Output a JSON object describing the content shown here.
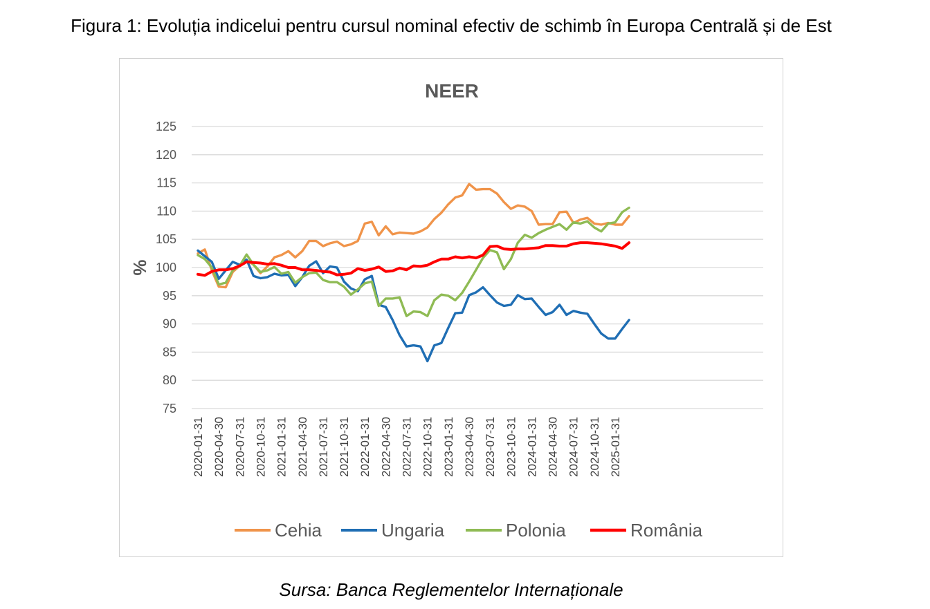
{
  "figure": {
    "title": "Figura 1: Evoluția indicelui pentru cursul nominal efectiv de schimb în Europa Centrală și de Est",
    "source": "Sursa: Banca Reglementelor Internaționale"
  },
  "chart_data": {
    "type": "line",
    "title": "NEER",
    "xlabel": "",
    "ylabel": "%",
    "ylim": [
      75,
      125
    ],
    "yticks": [
      75,
      80,
      85,
      90,
      95,
      100,
      105,
      110,
      115,
      120,
      125
    ],
    "grid": "horizontal",
    "legend_position": "bottom",
    "x_tick_labels": [
      "2020-01-31",
      "2020-04-30",
      "2020-07-31",
      "2020-10-31",
      "2021-01-31",
      "2021-04-30",
      "2021-07-31",
      "2021-10-31",
      "2022-01-31",
      "2022-04-30",
      "2022-07-31",
      "2022-10-31",
      "2023-01-31",
      "2023-04-30",
      "2023-07-31",
      "2023-10-31",
      "2024-01-31",
      "2024-04-30",
      "2024-07-31",
      "2024-10-31",
      "2025-01-31"
    ],
    "x_first": "2020-01-31",
    "x_last": "2025-05-31",
    "series": [
      {
        "name": "Cehia",
        "color": "#F0944A",
        "values": [
          102.5,
          103.2,
          99.5,
          96.6,
          96.5,
          99.2,
          100.3,
          101.3,
          100.5,
          99.0,
          100.2,
          101.8,
          102.2,
          102.9,
          101.8,
          102.9,
          104.7,
          104.7,
          103.8,
          104.3,
          104.6,
          103.8,
          104.1,
          104.7,
          107.8,
          108.1,
          105.7,
          107.3,
          105.9,
          106.2,
          106.1,
          106.0,
          106.4,
          107.1,
          108.6,
          109.7,
          111.2,
          112.4,
          112.8,
          114.8,
          113.8,
          113.9,
          113.9,
          113.1,
          111.6,
          110.4,
          111.0,
          110.8,
          110.0,
          107.6,
          107.7,
          107.7,
          109.8,
          109.9,
          107.9,
          108.5,
          108.8,
          107.8,
          107.6,
          107.9,
          107.6,
          107.6,
          109.1
        ]
      },
      {
        "name": "Ungaria",
        "color": "#1F6EB4",
        "values": [
          103.0,
          102.0,
          101.0,
          98.0,
          99.5,
          101.0,
          100.5,
          101.4,
          98.5,
          98.1,
          98.3,
          98.9,
          98.6,
          98.7,
          96.7,
          98.3,
          100.3,
          101.1,
          99.0,
          100.2,
          100.0,
          97.5,
          96.3,
          95.8,
          97.9,
          98.5,
          93.4,
          93.0,
          90.7,
          88.0,
          86.0,
          86.2,
          86.0,
          83.4,
          86.2,
          86.6,
          89.3,
          91.9,
          92.0,
          95.1,
          95.6,
          96.5,
          95.1,
          93.8,
          93.2,
          93.4,
          95.1,
          94.4,
          94.5,
          93.0,
          91.6,
          92.1,
          93.4,
          91.6,
          92.3,
          92.0,
          91.8,
          90.0,
          88.3,
          87.4,
          87.4,
          89.1,
          90.7
        ]
      },
      {
        "name": "Polonia",
        "color": "#8FBB54",
        "values": [
          102.2,
          101.5,
          100.0,
          97.0,
          97.3,
          99.5,
          100.3,
          102.3,
          100.5,
          99.2,
          99.5,
          100.1,
          98.9,
          99.2,
          97.3,
          98.3,
          99.0,
          99.1,
          97.8,
          97.4,
          97.4,
          96.6,
          95.2,
          96.1,
          97.2,
          97.5,
          93.2,
          94.5,
          94.5,
          94.7,
          91.4,
          92.2,
          92.1,
          91.4,
          94.2,
          95.2,
          95.0,
          94.2,
          95.5,
          97.5,
          99.6,
          101.7,
          103.1,
          102.7,
          99.7,
          101.5,
          104.4,
          105.8,
          105.3,
          106.1,
          106.7,
          107.2,
          107.7,
          106.7,
          108.0,
          107.8,
          108.2,
          107.1,
          106.4,
          107.8,
          108.0,
          109.8,
          110.6
        ]
      },
      {
        "name": "România",
        "color": "#FF0000",
        "values": [
          98.8,
          98.6,
          99.3,
          99.6,
          99.6,
          99.8,
          100.3,
          101.0,
          100.9,
          100.8,
          100.6,
          100.7,
          100.4,
          100.0,
          100.0,
          99.6,
          99.6,
          99.5,
          99.3,
          99.2,
          98.7,
          98.8,
          99.0,
          99.8,
          99.5,
          99.7,
          100.1,
          99.3,
          99.4,
          99.9,
          99.6,
          100.3,
          100.2,
          100.4,
          101.0,
          101.5,
          101.5,
          101.9,
          101.7,
          101.9,
          101.7,
          102.2,
          103.7,
          103.8,
          103.3,
          103.2,
          103.3,
          103.3,
          103.4,
          103.5,
          103.9,
          103.9,
          103.8,
          103.8,
          104.2,
          104.4,
          104.4,
          104.3,
          104.2,
          104.0,
          103.8,
          103.4,
          104.4
        ]
      }
    ]
  }
}
